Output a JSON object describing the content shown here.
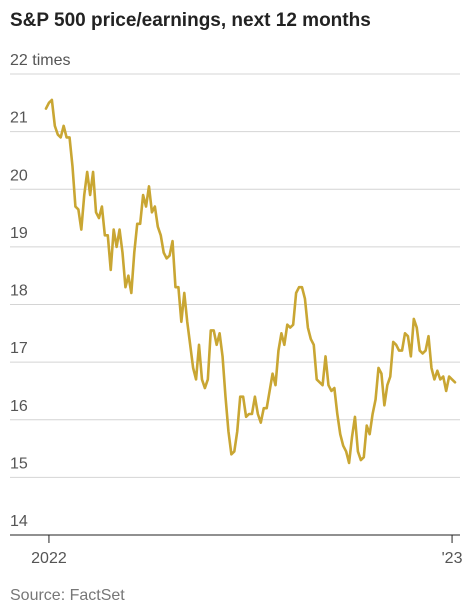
{
  "chart_data": {
    "type": "line",
    "title": "S&P 500 price/earnings, next 12 months",
    "source": "Source: FactSet",
    "categories": [
      null,
      "2022",
      null,
      null,
      null,
      null,
      null,
      null,
      null,
      null,
      null,
      null,
      null,
      null,
      null,
      null,
      null,
      null,
      null,
      null,
      null,
      null,
      null,
      null,
      null,
      null,
      null,
      null,
      null,
      null,
      null,
      null,
      null,
      null,
      null,
      null,
      null,
      null,
      null,
      null,
      null,
      null,
      null,
      null,
      null,
      null,
      null,
      null,
      null,
      null,
      null,
      null,
      null,
      null,
      null,
      null,
      null,
      null,
      null,
      null,
      null,
      null,
      null,
      null,
      null,
      null,
      null,
      null,
      null,
      null,
      null,
      null,
      null,
      null,
      null,
      null,
      null,
      null,
      null,
      null,
      null,
      null,
      null,
      null,
      null,
      null,
      null,
      null,
      null,
      null,
      null,
      null,
      null,
      null,
      null,
      null,
      null,
      null,
      null,
      null,
      null,
      null,
      null,
      null,
      null,
      null,
      null,
      null,
      null,
      null,
      null,
      null,
      null,
      null,
      null,
      null,
      null,
      null,
      null,
      null,
      null,
      null,
      null,
      null,
      null,
      null,
      null,
      null,
      null,
      null,
      null,
      null,
      null,
      null,
      null,
      null,
      null,
      null,
      "'23",
      null
    ],
    "series": [
      {
        "name": "S&P 500 price/earnings",
        "color": "#c9a633",
        "values": [
          21.4,
          21.5,
          21.55,
          21.1,
          20.95,
          20.9,
          21.1,
          20.9,
          20.9,
          20.4,
          19.7,
          19.65,
          19.3,
          19.9,
          20.3,
          19.9,
          20.3,
          19.6,
          19.5,
          19.7,
          19.2,
          19.2,
          18.6,
          19.3,
          19.0,
          19.3,
          18.9,
          18.3,
          18.5,
          18.2,
          18.9,
          19.4,
          19.4,
          19.9,
          19.7,
          20.05,
          19.6,
          19.7,
          19.35,
          19.2,
          18.9,
          18.8,
          18.85,
          19.1,
          18.3,
          18.3,
          17.7,
          18.2,
          17.7,
          17.3,
          16.9,
          16.7,
          17.3,
          16.7,
          16.55,
          16.7,
          17.55,
          17.55,
          17.3,
          17.5,
          17.1,
          16.4,
          15.8,
          15.4,
          15.45,
          15.8,
          16.4,
          16.4,
          16.05,
          16.1,
          16.1,
          16.4,
          16.1,
          15.95,
          16.2,
          16.2,
          16.5,
          16.8,
          16.6,
          17.2,
          17.5,
          17.3,
          17.65,
          17.6,
          17.65,
          18.2,
          18.3,
          18.3,
          18.1,
          17.6,
          17.4,
          17.3,
          16.7,
          16.65,
          16.6,
          17.1,
          16.6,
          16.5,
          16.55,
          16.1,
          15.75,
          15.55,
          15.45,
          15.25,
          15.7,
          16.05,
          15.45,
          15.3,
          15.35,
          15.9,
          15.75,
          16.1,
          16.35,
          16.9,
          16.8,
          16.25,
          16.6,
          16.75,
          17.35,
          17.3,
          17.2,
          17.2,
          17.5,
          17.45,
          17.1,
          17.75,
          17.6,
          17.2,
          17.15,
          17.2,
          17.45,
          16.9,
          16.7,
          16.85,
          16.7,
          16.75,
          16.5,
          16.75,
          16.7,
          16.65
        ]
      }
    ],
    "ylim": [
      14,
      22
    ],
    "yticks": [
      14,
      15,
      16,
      17,
      18,
      19,
      20,
      21,
      {
        "value": 22,
        "label": "22 times"
      }
    ],
    "grid": true
  }
}
